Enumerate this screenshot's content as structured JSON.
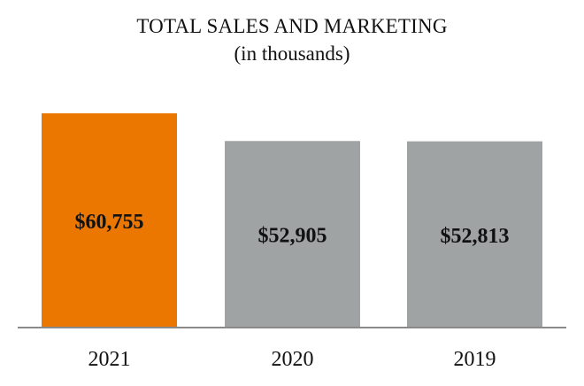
{
  "chart_data": {
    "type": "bar",
    "title": "TOTAL SALES AND MARKETING",
    "subtitle": "(in thousands)",
    "categories": [
      "2021",
      "2020",
      "2019"
    ],
    "values": [
      60755,
      52905,
      52813
    ],
    "data_labels": [
      "$60,755",
      "$52,905",
      "$52,813"
    ],
    "bar_colors": [
      "#ec7700",
      "#9fa3a3",
      "#9fa3a3"
    ],
    "xlabel": "",
    "ylabel": "",
    "ylim": [
      0,
      75000
    ],
    "grid": false,
    "legend": "none"
  }
}
